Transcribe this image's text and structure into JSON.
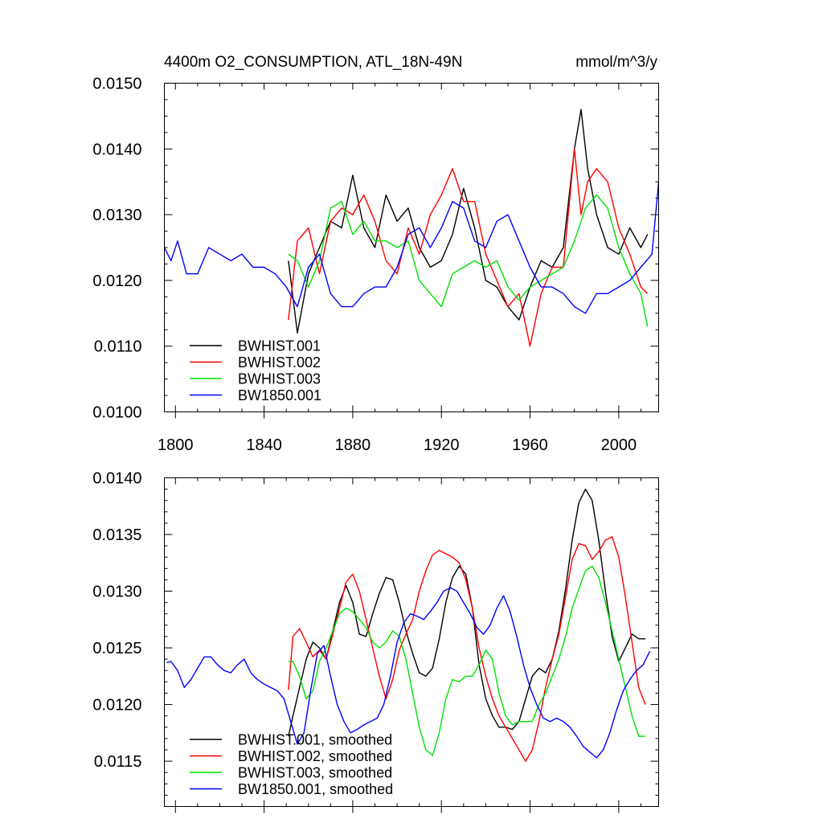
{
  "chart_data": [
    {
      "type": "line",
      "title": "4400m O2_CONSUMPTION, ATL_18N-49N",
      "units": "mmol/m^3/y",
      "xlim": [
        1795,
        2018
      ],
      "ylim": [
        0.01,
        0.015
      ],
      "xticks": [
        1800,
        1840,
        1880,
        1920,
        1960,
        2000
      ],
      "xtick_labels": [
        "1800",
        "1840",
        "1880",
        "1920",
        "1960",
        "2000"
      ],
      "yticks": [
        0.01,
        0.011,
        0.012,
        0.013,
        0.014,
        0.015
      ],
      "ytick_labels": [
        "0.0100",
        "0.0110",
        "0.0120",
        "0.0130",
        "0.0140",
        "0.0150"
      ],
      "legend_position": "bottom-left",
      "series": [
        {
          "name": "BWHIST.001",
          "color": "#000000",
          "x": [
            1851,
            1855,
            1860,
            1865,
            1870,
            1875,
            1880,
            1885,
            1890,
            1895,
            1900,
            1905,
            1910,
            1915,
            1920,
            1925,
            1930,
            1935,
            1940,
            1945,
            1950,
            1955,
            1960,
            1965,
            1970,
            1975,
            1980,
            1983,
            1986,
            1990,
            1995,
            2000,
            2005,
            2010,
            2013
          ],
          "y": [
            0.0123,
            0.0112,
            0.0121,
            0.0125,
            0.0129,
            0.0128,
            0.0136,
            0.0128,
            0.0125,
            0.0133,
            0.0129,
            0.0131,
            0.0125,
            0.0122,
            0.0123,
            0.0127,
            0.0134,
            0.0128,
            0.012,
            0.0119,
            0.0116,
            0.0114,
            0.0119,
            0.0123,
            0.0122,
            0.0125,
            0.014,
            0.0146,
            0.0137,
            0.013,
            0.0125,
            0.0124,
            0.0128,
            0.0125,
            0.0127
          ]
        },
        {
          "name": "BWHIST.002",
          "color": "#ff0000",
          "x": [
            1851,
            1855,
            1860,
            1865,
            1870,
            1875,
            1880,
            1885,
            1890,
            1895,
            1900,
            1905,
            1910,
            1915,
            1920,
            1925,
            1930,
            1935,
            1940,
            1945,
            1950,
            1955,
            1960,
            1965,
            1970,
            1975,
            1980,
            1983,
            1986,
            1990,
            1995,
            2000,
            2005,
            2010,
            2013
          ],
          "y": [
            0.0114,
            0.0126,
            0.0128,
            0.0121,
            0.0129,
            0.0131,
            0.013,
            0.0133,
            0.0129,
            0.0123,
            0.0121,
            0.0128,
            0.0124,
            0.013,
            0.0133,
            0.0137,
            0.0132,
            0.0132,
            0.0124,
            0.012,
            0.0116,
            0.0118,
            0.011,
            0.0118,
            0.0122,
            0.0122,
            0.014,
            0.013,
            0.0135,
            0.0137,
            0.0135,
            0.0128,
            0.0124,
            0.0119,
            0.0118
          ]
        },
        {
          "name": "BWHIST.003",
          "color": "#00e000",
          "x": [
            1851,
            1855,
            1860,
            1865,
            1870,
            1875,
            1880,
            1885,
            1890,
            1895,
            1900,
            1905,
            1910,
            1915,
            1920,
            1925,
            1930,
            1935,
            1940,
            1945,
            1950,
            1955,
            1960,
            1965,
            1970,
            1975,
            1980,
            1985,
            1990,
            1995,
            2000,
            2005,
            2010,
            2013
          ],
          "y": [
            0.0124,
            0.0123,
            0.0119,
            0.0123,
            0.0131,
            0.0132,
            0.0127,
            0.0129,
            0.0126,
            0.0126,
            0.0125,
            0.0126,
            0.012,
            0.0118,
            0.0116,
            0.0121,
            0.0122,
            0.0123,
            0.0122,
            0.0123,
            0.0119,
            0.0117,
            0.0119,
            0.012,
            0.0121,
            0.0122,
            0.0126,
            0.0131,
            0.0133,
            0.0131,
            0.0125,
            0.0121,
            0.0118,
            0.0113
          ]
        },
        {
          "name": "BW1850.001",
          "color": "#0000ff",
          "x": [
            1795,
            1798,
            1801,
            1805,
            1810,
            1815,
            1820,
            1825,
            1830,
            1835,
            1840,
            1845,
            1850,
            1855,
            1860,
            1865,
            1870,
            1875,
            1880,
            1885,
            1890,
            1895,
            1900,
            1905,
            1910,
            1915,
            1920,
            1925,
            1930,
            1935,
            1940,
            1945,
            1950,
            1955,
            1960,
            1965,
            1970,
            1975,
            1980,
            1985,
            1990,
            1995,
            2000,
            2005,
            2010,
            2015,
            2018
          ],
          "y": [
            0.0125,
            0.0123,
            0.0126,
            0.0121,
            0.0121,
            0.0125,
            0.0124,
            0.0123,
            0.0124,
            0.0122,
            0.0122,
            0.0121,
            0.0119,
            0.0116,
            0.0122,
            0.0124,
            0.0118,
            0.0116,
            0.0116,
            0.0118,
            0.0119,
            0.0119,
            0.0122,
            0.0127,
            0.0128,
            0.0125,
            0.0128,
            0.0132,
            0.0131,
            0.0126,
            0.0125,
            0.0129,
            0.013,
            0.0126,
            0.0122,
            0.0119,
            0.0119,
            0.0118,
            0.0116,
            0.0115,
            0.0118,
            0.0118,
            0.0119,
            0.012,
            0.0122,
            0.0124,
            0.0135
          ]
        }
      ]
    },
    {
      "type": "line",
      "title": "",
      "xlim": [
        1795,
        2018
      ],
      "ylim": [
        0.0111,
        0.014
      ],
      "xticks": [
        1800,
        1840,
        1880,
        1920,
        1960,
        2000
      ],
      "yticks": [
        0.0115,
        0.012,
        0.0125,
        0.013,
        0.0135,
        0.014
      ],
      "ytick_labels": [
        "0.0115",
        "0.0120",
        "0.0125",
        "0.0130",
        "0.0135",
        "0.0140"
      ],
      "legend_position": "bottom-left",
      "series": [
        {
          "name": "BWHIST.001, smoothed",
          "color": "#000000",
          "x": [
            1851,
            1853,
            1856,
            1859,
            1862,
            1865,
            1868,
            1871,
            1874,
            1877,
            1880,
            1883,
            1886,
            1889,
            1892,
            1895,
            1898,
            1901,
            1904,
            1907,
            1910,
            1913,
            1916,
            1919,
            1922,
            1925,
            1928,
            1931,
            1934,
            1937,
            1940,
            1943,
            1946,
            1949,
            1952,
            1955,
            1958,
            1961,
            1964,
            1967,
            1970,
            1973,
            1976,
            1979,
            1982,
            1985,
            1988,
            1991,
            1994,
            1997,
            2000,
            2003,
            2006,
            2009,
            2012
          ],
          "y": [
            0.01172,
            0.0119,
            0.01215,
            0.0124,
            0.01255,
            0.0125,
            0.0124,
            0.01265,
            0.0129,
            0.01305,
            0.0129,
            0.01262,
            0.0126,
            0.0128,
            0.01298,
            0.01312,
            0.0131,
            0.0129,
            0.01265,
            0.01245,
            0.01228,
            0.01225,
            0.01232,
            0.01258,
            0.0129,
            0.01312,
            0.01322,
            0.01315,
            0.01285,
            0.01235,
            0.01205,
            0.0119,
            0.0118,
            0.0118,
            0.01178,
            0.01185,
            0.01205,
            0.01225,
            0.01232,
            0.01228,
            0.0124,
            0.01265,
            0.01302,
            0.01345,
            0.01378,
            0.0139,
            0.0138,
            0.01345,
            0.013,
            0.0126,
            0.01238,
            0.0125,
            0.01262,
            0.01258,
            0.01258
          ]
        },
        {
          "name": "BWHIST.002, smoothed",
          "color": "#ff0000",
          "x": [
            1851,
            1853,
            1856,
            1859,
            1862,
            1865,
            1868,
            1871,
            1874,
            1877,
            1880,
            1883,
            1886,
            1889,
            1892,
            1895,
            1898,
            1901,
            1904,
            1907,
            1910,
            1913,
            1916,
            1919,
            1922,
            1925,
            1928,
            1931,
            1934,
            1937,
            1940,
            1943,
            1946,
            1949,
            1952,
            1955,
            1958,
            1961,
            1964,
            1967,
            1970,
            1973,
            1976,
            1979,
            1982,
            1985,
            1988,
            1991,
            1994,
            1997,
            2000,
            2003,
            2006,
            2009,
            2012
          ],
          "y": [
            0.01213,
            0.0126,
            0.01267,
            0.01255,
            0.01242,
            0.01248,
            0.0124,
            0.01262,
            0.01285,
            0.01308,
            0.01315,
            0.013,
            0.01275,
            0.0125,
            0.01225,
            0.01205,
            0.01222,
            0.01248,
            0.01262,
            0.01275,
            0.013,
            0.01318,
            0.01332,
            0.01336,
            0.01333,
            0.0133,
            0.01325,
            0.0131,
            0.01285,
            0.0125,
            0.01225,
            0.01205,
            0.0119,
            0.0118,
            0.0117,
            0.0116,
            0.0115,
            0.0116,
            0.01185,
            0.01215,
            0.0124,
            0.01262,
            0.01295,
            0.01328,
            0.01342,
            0.0134,
            0.01328,
            0.01335,
            0.01345,
            0.01348,
            0.0133,
            0.01295,
            0.01255,
            0.01215,
            0.012
          ]
        },
        {
          "name": "BWHIST.003, smoothed",
          "color": "#00e000",
          "x": [
            1851,
            1853,
            1856,
            1859,
            1862,
            1865,
            1868,
            1871,
            1874,
            1877,
            1880,
            1883,
            1886,
            1889,
            1892,
            1895,
            1898,
            1901,
            1904,
            1907,
            1910,
            1913,
            1916,
            1919,
            1922,
            1925,
            1928,
            1931,
            1934,
            1937,
            1940,
            1943,
            1946,
            1949,
            1952,
            1955,
            1958,
            1961,
            1964,
            1967,
            1970,
            1973,
            1976,
            1979,
            1982,
            1985,
            1988,
            1991,
            1994,
            1997,
            2000,
            2003,
            2006,
            2009,
            2012
          ],
          "y": [
            0.01238,
            0.01238,
            0.01225,
            0.01205,
            0.01212,
            0.01238,
            0.0125,
            0.01265,
            0.0128,
            0.01285,
            0.01282,
            0.01275,
            0.01268,
            0.01255,
            0.0125,
            0.01255,
            0.01265,
            0.0126,
            0.0124,
            0.0121,
            0.0118,
            0.0116,
            0.01155,
            0.01175,
            0.01205,
            0.01222,
            0.0122,
            0.01225,
            0.01225,
            0.01235,
            0.01248,
            0.0124,
            0.0121,
            0.0119,
            0.01182,
            0.01185,
            0.01185,
            0.01185,
            0.012,
            0.0121,
            0.01225,
            0.0124,
            0.0126,
            0.01285,
            0.01302,
            0.01318,
            0.01322,
            0.01312,
            0.0129,
            0.01265,
            0.0124,
            0.01215,
            0.0119,
            0.01172,
            0.01172
          ]
        },
        {
          "name": "BW1850.001, smoothed",
          "color": "#0000ff",
          "x": [
            1796,
            1798,
            1801,
            1804,
            1807,
            1810,
            1813,
            1816,
            1819,
            1822,
            1825,
            1828,
            1831,
            1834,
            1837,
            1840,
            1843,
            1846,
            1849,
            1852,
            1855,
            1858,
            1861,
            1864,
            1867,
            1870,
            1873,
            1876,
            1879,
            1882,
            1885,
            1888,
            1891,
            1894,
            1897,
            1900,
            1903,
            1906,
            1909,
            1912,
            1915,
            1918,
            1921,
            1924,
            1927,
            1930,
            1933,
            1936,
            1939,
            1942,
            1945,
            1948,
            1951,
            1954,
            1957,
            1960,
            1963,
            1966,
            1969,
            1972,
            1975,
            1978,
            1981,
            1984,
            1987,
            1990,
            1993,
            1996,
            1999,
            2002,
            2005,
            2008,
            2011,
            2014
          ],
          "y": [
            0.01237,
            0.01238,
            0.0123,
            0.01215,
            0.01222,
            0.01232,
            0.01242,
            0.01242,
            0.01235,
            0.0123,
            0.01228,
            0.01235,
            0.0124,
            0.01228,
            0.01222,
            0.01218,
            0.01215,
            0.01212,
            0.01205,
            0.01185,
            0.01165,
            0.01175,
            0.01212,
            0.01245,
            0.01252,
            0.01225,
            0.012,
            0.01185,
            0.01175,
            0.01178,
            0.01182,
            0.01185,
            0.01188,
            0.012,
            0.01225,
            0.01255,
            0.01272,
            0.0128,
            0.01278,
            0.01275,
            0.01282,
            0.0129,
            0.013,
            0.01303,
            0.013,
            0.0129,
            0.0128,
            0.01268,
            0.01262,
            0.0127,
            0.01285,
            0.01296,
            0.01282,
            0.0126,
            0.01235,
            0.01215,
            0.012,
            0.01188,
            0.01185,
            0.01188,
            0.01185,
            0.0118,
            0.01172,
            0.01163,
            0.01158,
            0.01153,
            0.0116,
            0.01175,
            0.01195,
            0.01212,
            0.01222,
            0.0123,
            0.01235,
            0.01247
          ]
        }
      ]
    }
  ]
}
